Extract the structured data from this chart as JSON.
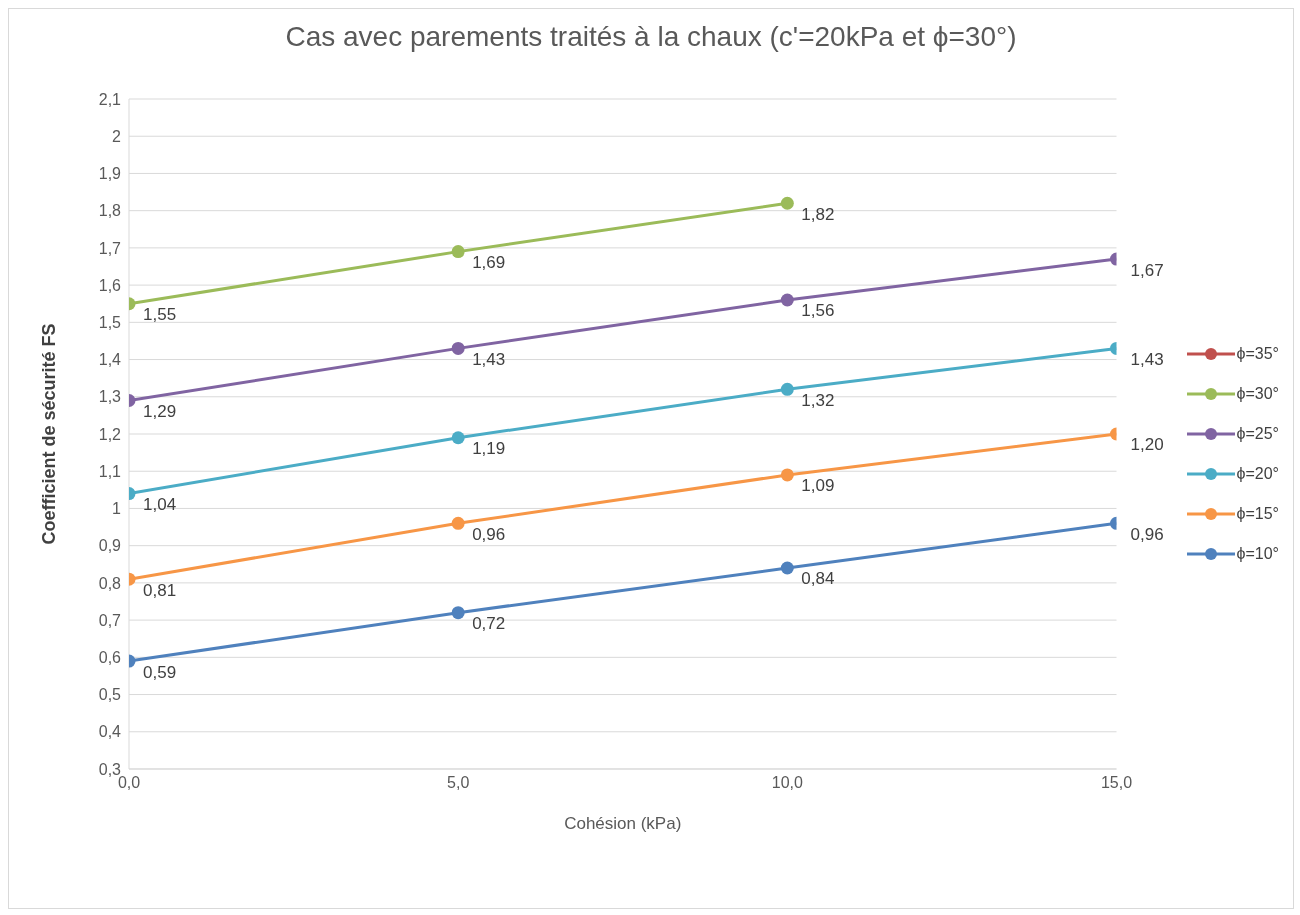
{
  "chart_data": {
    "type": "line",
    "title": "Cas avec parements traités à la chaux (c'=20kPa et ϕ=30°)",
    "xlabel": "Cohésion (kPa)",
    "ylabel": "Coefficient de sécurité FS",
    "x": [
      0,
      5,
      10,
      15
    ],
    "xlim": [
      0,
      15
    ],
    "xticks": [
      {
        "value": 0,
        "label": "0,0"
      },
      {
        "value": 5,
        "label": "5,0"
      },
      {
        "value": 10,
        "label": "10,0"
      },
      {
        "value": 15,
        "label": "15,0"
      }
    ],
    "ylim": [
      0.3,
      2.1
    ],
    "yticks": [
      {
        "value": 0.3,
        "label": "0,3"
      },
      {
        "value": 0.4,
        "label": "0,4"
      },
      {
        "value": 0.5,
        "label": "0,5"
      },
      {
        "value": 0.6,
        "label": "0,6"
      },
      {
        "value": 0.7,
        "label": "0,7"
      },
      {
        "value": 0.8,
        "label": "0,8"
      },
      {
        "value": 0.9,
        "label": "0,9"
      },
      {
        "value": 1,
        "label": "1"
      },
      {
        "value": 1.1,
        "label": "1,1"
      },
      {
        "value": 1.2,
        "label": "1,2"
      },
      {
        "value": 1.3,
        "label": "1,3"
      },
      {
        "value": 1.4,
        "label": "1,4"
      },
      {
        "value": 1.5,
        "label": "1,5"
      },
      {
        "value": 1.6,
        "label": "1,6"
      },
      {
        "value": 1.7,
        "label": "1,7"
      },
      {
        "value": 1.8,
        "label": "1,8"
      },
      {
        "value": 1.9,
        "label": "1,9"
      },
      {
        "value": 2,
        "label": "2"
      },
      {
        "value": 2.1,
        "label": "2,1"
      }
    ],
    "grid": "y",
    "legend": "right",
    "marker": "circle",
    "line_style": "solid",
    "series": [
      {
        "name": "ϕ=35°",
        "color": "#c0504d",
        "values": [
          null,
          null,
          null,
          null
        ],
        "value_labels": [
          null,
          null,
          null,
          null
        ]
      },
      {
        "name": "ϕ=30°",
        "color": "#9bbb59",
        "values": [
          1.55,
          1.69,
          1.82,
          null
        ],
        "value_labels": [
          "1,55",
          "1,69",
          "1,82",
          null
        ]
      },
      {
        "name": "ϕ=25°",
        "color": "#8064a2",
        "values": [
          1.29,
          1.43,
          1.56,
          1.67
        ],
        "value_labels": [
          "1,29",
          "1,43",
          "1,56",
          "1,67"
        ]
      },
      {
        "name": "ϕ=20°",
        "color": "#4bacc6",
        "values": [
          1.04,
          1.19,
          1.32,
          1.43
        ],
        "value_labels": [
          "1,04",
          "1,19",
          "1,32",
          "1,43"
        ]
      },
      {
        "name": "ϕ=15°",
        "color": "#f79646",
        "values": [
          0.81,
          0.96,
          1.09,
          1.2
        ],
        "value_labels": [
          "0,81",
          "0,96",
          "1,09",
          "1,20"
        ]
      },
      {
        "name": "ϕ=10°",
        "color": "#4f81bd",
        "values": [
          0.59,
          0.72,
          0.84,
          0.96
        ],
        "value_labels": [
          "0,59",
          "0,72",
          "0,84",
          "0,96"
        ]
      }
    ]
  }
}
